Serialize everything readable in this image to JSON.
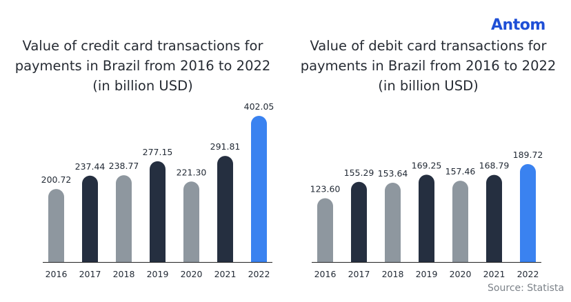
{
  "brand": {
    "logo_text": "Antom",
    "logo_color": "#1f4fd6"
  },
  "source": "Source: Statista",
  "colors": {
    "gray": "#8e979f",
    "navy": "#252f40",
    "blue": "#3a82f0",
    "baseline": "#222222",
    "label": "#222a35"
  },
  "chart_data": [
    {
      "type": "bar",
      "title_lines": [
        "Value of credit card transactions for",
        "payments in Brazil from 2016 to 2022",
        "(in billion USD)"
      ],
      "categories": [
        "2016",
        "2017",
        "2018",
        "2019",
        "2020",
        "2021",
        "2022"
      ],
      "values": [
        200.72,
        237.44,
        238.77,
        277.15,
        221.3,
        291.81,
        402.05
      ],
      "value_labels": [
        "200.72",
        "237.44",
        "238.77",
        "277.15",
        "221.30",
        "291.81",
        "402.05"
      ],
      "bar_colors": [
        "gray",
        "navy",
        "gray",
        "navy",
        "gray",
        "navy",
        "blue"
      ],
      "ylim": [
        0,
        402.05
      ],
      "xlabel": "",
      "ylabel": "",
      "grid": false,
      "legend": "none"
    },
    {
      "type": "bar",
      "title_lines": [
        "Value of debit card transactions for",
        "payments in Brazil from 2016 to 2022",
        "(in billion USD)"
      ],
      "categories": [
        "2016",
        "2017",
        "2018",
        "2019",
        "2020",
        "2021",
        "2022"
      ],
      "values": [
        123.6,
        155.29,
        153.64,
        169.25,
        157.46,
        168.79,
        189.72
      ],
      "value_labels": [
        "123.60",
        "155.29",
        "153.64",
        "169.25",
        "157.46",
        "168.79",
        "189.72"
      ],
      "bar_colors": [
        "gray",
        "navy",
        "gray",
        "navy",
        "gray",
        "navy",
        "blue"
      ],
      "ylim": [
        0,
        189.72
      ],
      "xlabel": "",
      "ylabel": "",
      "grid": false,
      "legend": "none"
    }
  ]
}
